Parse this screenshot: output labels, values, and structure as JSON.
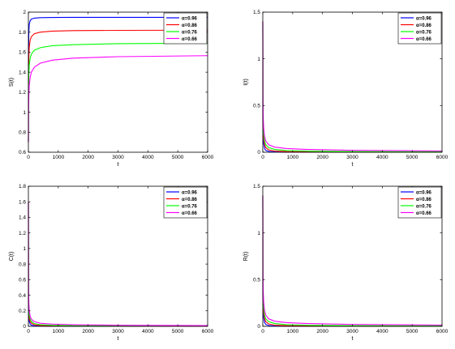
{
  "chart_data": [
    {
      "type": "line",
      "xlabel": "t",
      "ylabel": "S(t)",
      "xlim": [
        0,
        6000
      ],
      "ylim": [
        0.6,
        2
      ],
      "xticks": [
        "0",
        "1000",
        "2000",
        "3000",
        "4000",
        "5000",
        "6000"
      ],
      "yticks": [
        "0.6",
        "0.8",
        "1",
        "1.2",
        "1.4",
        "1.6",
        "1.8",
        "2"
      ],
      "grid": false,
      "legend_position": "top-right",
      "series": [
        {
          "name": "α=0.96",
          "color": "#0000ff",
          "x": [
            0,
            5,
            15,
            30,
            60,
            100,
            200,
            400,
            800,
            1500,
            3000,
            6000
          ],
          "y": [
            0.7,
            1.55,
            1.8,
            1.88,
            1.915,
            1.93,
            1.94,
            1.945,
            1.947,
            1.948,
            1.948,
            1.948
          ]
        },
        {
          "name": "α=0.86",
          "color": "#ff0000",
          "x": [
            0,
            5,
            15,
            30,
            60,
            100,
            200,
            400,
            800,
            1500,
            3000,
            6000
          ],
          "y": [
            0.7,
            1.35,
            1.55,
            1.65,
            1.72,
            1.755,
            1.785,
            1.8,
            1.81,
            1.815,
            1.818,
            1.82
          ]
        },
        {
          "name": "α=0.76",
          "color": "#00ff00",
          "x": [
            0,
            5,
            15,
            30,
            60,
            100,
            200,
            400,
            800,
            1500,
            3000,
            6000
          ],
          "y": [
            0.7,
            1.2,
            1.38,
            1.47,
            1.54,
            1.58,
            1.62,
            1.645,
            1.665,
            1.675,
            1.685,
            1.69
          ]
        },
        {
          "name": "α=0.66",
          "color": "#ff00ff",
          "x": [
            0,
            5,
            15,
            30,
            60,
            100,
            200,
            400,
            800,
            1500,
            3000,
            6000
          ],
          "y": [
            0.7,
            1.0,
            1.17,
            1.27,
            1.35,
            1.4,
            1.45,
            1.49,
            1.52,
            1.54,
            1.555,
            1.565
          ]
        }
      ]
    },
    {
      "type": "line",
      "xlabel": "t",
      "ylabel": "I(t)",
      "xlim": [
        0,
        6000
      ],
      "ylim": [
        0,
        1.5
      ],
      "xticks": [
        "0",
        "1000",
        "2000",
        "3000",
        "4000",
        "5000",
        "6000"
      ],
      "yticks": [
        "0",
        "0.5",
        "1",
        "1.5"
      ],
      "grid": false,
      "legend_position": "top-right",
      "series": [
        {
          "name": "α=0.96",
          "color": "#0000ff",
          "x": [
            0,
            5,
            15,
            30,
            60,
            100,
            200,
            400,
            800,
            1500,
            3000,
            6000
          ],
          "y": [
            1.4,
            0.45,
            0.18,
            0.09,
            0.04,
            0.02,
            0.008,
            0.004,
            0.002,
            0.001,
            0.0005,
            0.0002
          ]
        },
        {
          "name": "α=0.86",
          "color": "#ff0000",
          "x": [
            0,
            5,
            15,
            30,
            60,
            100,
            200,
            400,
            800,
            1500,
            3000,
            6000
          ],
          "y": [
            1.4,
            0.5,
            0.25,
            0.15,
            0.08,
            0.05,
            0.025,
            0.013,
            0.007,
            0.004,
            0.002,
            0.001
          ]
        },
        {
          "name": "α=0.76",
          "color": "#00ff00",
          "x": [
            0,
            5,
            15,
            30,
            60,
            100,
            200,
            400,
            800,
            1500,
            3000,
            6000
          ],
          "y": [
            1.4,
            0.55,
            0.3,
            0.2,
            0.12,
            0.08,
            0.05,
            0.03,
            0.018,
            0.012,
            0.007,
            0.004
          ]
        },
        {
          "name": "α=0.66",
          "color": "#ff00ff",
          "x": [
            0,
            5,
            15,
            30,
            60,
            100,
            200,
            400,
            800,
            1500,
            3000,
            6000
          ],
          "y": [
            1.4,
            0.6,
            0.37,
            0.26,
            0.17,
            0.12,
            0.08,
            0.055,
            0.04,
            0.03,
            0.02,
            0.013
          ]
        }
      ]
    },
    {
      "type": "line",
      "xlabel": "t",
      "ylabel": "C(t)",
      "xlim": [
        0,
        6000
      ],
      "ylim": [
        0,
        1.8
      ],
      "xticks": [
        "0",
        "1000",
        "2000",
        "3000",
        "4000",
        "5000",
        "6000"
      ],
      "yticks": [
        "0",
        "0.2",
        "0.4",
        "0.6",
        "0.8",
        "1",
        "1.2",
        "1.4",
        "1.6",
        "1.8"
      ],
      "grid": false,
      "legend_position": "top-right",
      "series": [
        {
          "name": "α=0.96",
          "color": "#0000ff",
          "x": [
            0,
            5,
            15,
            30,
            60,
            100,
            200,
            400,
            800,
            1500,
            3000,
            6000
          ],
          "y": [
            1.6,
            0.35,
            0.12,
            0.06,
            0.03,
            0.015,
            0.007,
            0.004,
            0.002,
            0.001,
            0.0006,
            0.0003
          ]
        },
        {
          "name": "α=0.86",
          "color": "#ff0000",
          "x": [
            0,
            5,
            15,
            30,
            60,
            100,
            200,
            400,
            800,
            1500,
            3000,
            6000
          ],
          "y": [
            1.6,
            0.4,
            0.18,
            0.1,
            0.06,
            0.04,
            0.02,
            0.012,
            0.007,
            0.004,
            0.002,
            0.001
          ]
        },
        {
          "name": "α=0.76",
          "color": "#00ff00",
          "x": [
            0,
            5,
            15,
            30,
            60,
            100,
            200,
            400,
            800,
            1500,
            3000,
            6000
          ],
          "y": [
            1.6,
            0.45,
            0.22,
            0.14,
            0.09,
            0.06,
            0.035,
            0.022,
            0.014,
            0.009,
            0.006,
            0.004
          ]
        },
        {
          "name": "α=0.66",
          "color": "#ff00ff",
          "x": [
            0,
            5,
            15,
            30,
            60,
            100,
            200,
            400,
            800,
            1500,
            3000,
            6000
          ],
          "y": [
            1.6,
            0.55,
            0.3,
            0.2,
            0.13,
            0.09,
            0.06,
            0.04,
            0.028,
            0.02,
            0.014,
            0.01
          ]
        }
      ]
    },
    {
      "type": "line",
      "xlabel": "t",
      "ylabel": "R(t)",
      "xlim": [
        0,
        6000
      ],
      "ylim": [
        0,
        1.5
      ],
      "xticks": [
        "0",
        "1000",
        "2000",
        "3000",
        "4000",
        "5000",
        "6000"
      ],
      "yticks": [
        "0",
        "0.5",
        "1",
        "1.5"
      ],
      "grid": false,
      "legend_position": "top-right",
      "series": [
        {
          "name": "α=0.96",
          "color": "#0000ff",
          "x": [
            0,
            5,
            15,
            30,
            60,
            100,
            200,
            400,
            800,
            1500,
            3000,
            6000
          ],
          "y": [
            1.4,
            0.45,
            0.18,
            0.09,
            0.04,
            0.02,
            0.008,
            0.004,
            0.002,
            0.001,
            0.0005,
            0.0002
          ]
        },
        {
          "name": "α=0.86",
          "color": "#ff0000",
          "x": [
            0,
            5,
            15,
            30,
            60,
            100,
            200,
            400,
            800,
            1500,
            3000,
            6000
          ],
          "y": [
            1.4,
            0.5,
            0.25,
            0.15,
            0.08,
            0.05,
            0.025,
            0.013,
            0.007,
            0.004,
            0.002,
            0.001
          ]
        },
        {
          "name": "α=0.76",
          "color": "#00ff00",
          "x": [
            0,
            5,
            15,
            30,
            60,
            100,
            200,
            400,
            800,
            1500,
            3000,
            6000
          ],
          "y": [
            1.4,
            0.55,
            0.3,
            0.2,
            0.12,
            0.08,
            0.05,
            0.03,
            0.018,
            0.012,
            0.007,
            0.004
          ]
        },
        {
          "name": "α=0.66",
          "color": "#ff00ff",
          "x": [
            0,
            5,
            15,
            30,
            60,
            100,
            200,
            400,
            800,
            1500,
            3000,
            6000
          ],
          "y": [
            1.4,
            0.6,
            0.37,
            0.26,
            0.17,
            0.12,
            0.08,
            0.055,
            0.04,
            0.03,
            0.02,
            0.013
          ]
        }
      ]
    }
  ]
}
